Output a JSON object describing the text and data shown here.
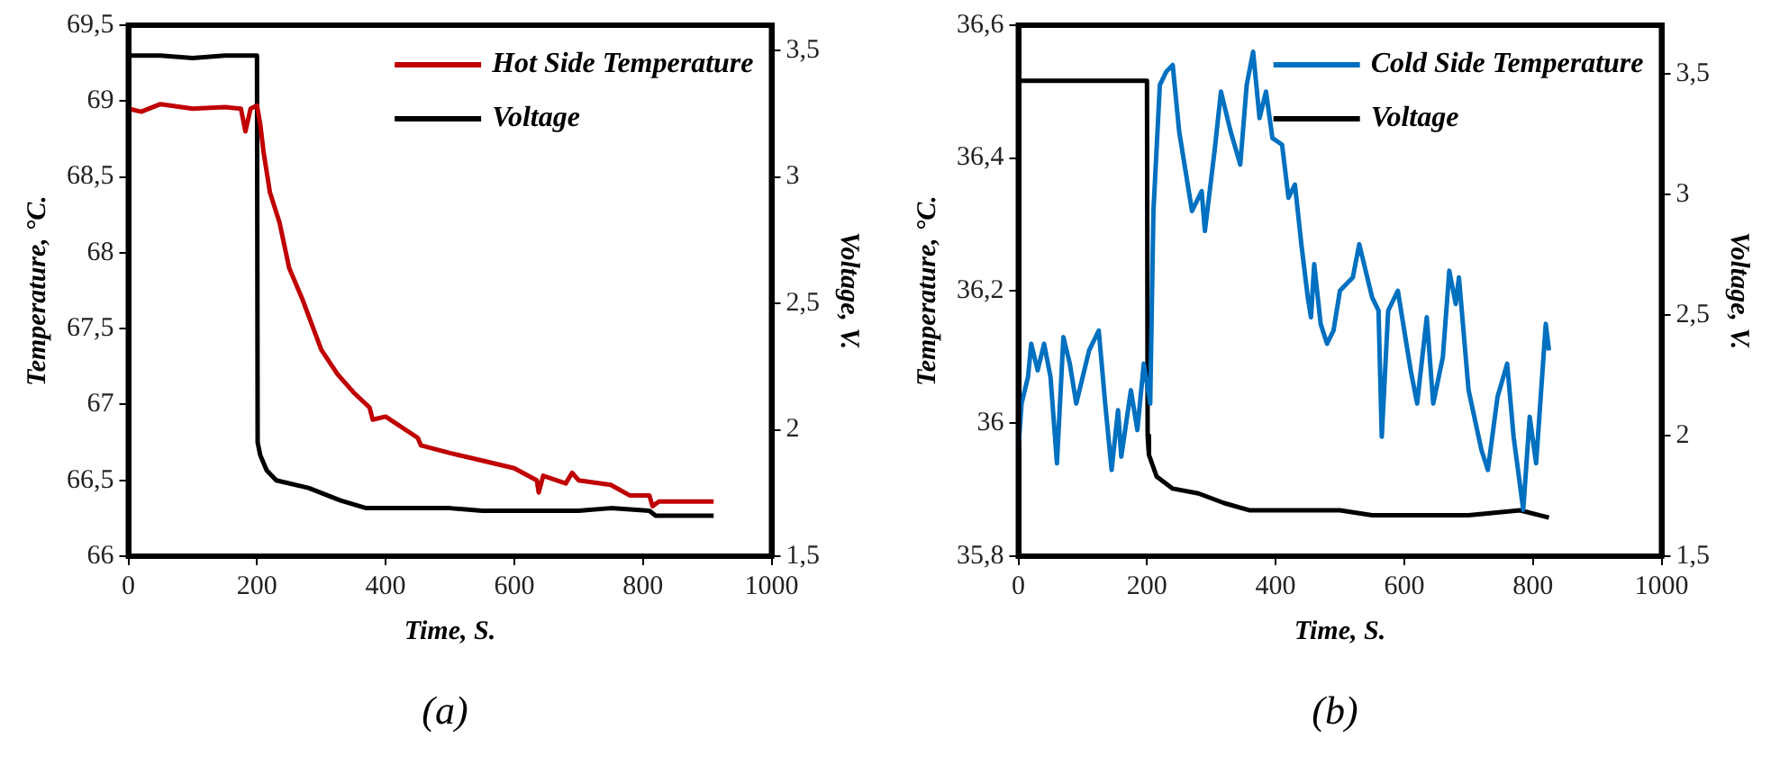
{
  "chart_data": [
    {
      "type": "line",
      "xlabel": "Time, S.",
      "ylabel": "Temperature, °C.",
      "y2label": "Voltage, V.",
      "annotations": [
        "(a)"
      ],
      "legend": "top right",
      "grid": false,
      "marker": "none",
      "line_style": "solid",
      "xlim": [
        0,
        1000
      ],
      "xticks": [
        0,
        200,
        400,
        600,
        800,
        1000
      ],
      "ylim": [
        66,
        69.5
      ],
      "yticks": [
        66,
        {
          "value": 66.5,
          "label": "66,5"
        },
        67,
        {
          "value": 67.5,
          "label": "67,5"
        },
        68,
        {
          "value": 68.5,
          "label": "68,5"
        },
        69,
        {
          "value": 69.5,
          "label": "69,5"
        }
      ],
      "y2lim": [
        1.5,
        3.6
      ],
      "y2ticks": [
        {
          "value": 1.5,
          "label": "1,5"
        },
        {
          "value": 2,
          "label": "2"
        },
        {
          "value": 2.5,
          "label": "2,5"
        },
        {
          "value": 3,
          "label": "3"
        },
        {
          "value": 3.5,
          "label": "3,5"
        }
      ],
      "series": [
        {
          "name": "Hot Side Temperature",
          "color": "#c00000",
          "x": [
            0,
            20,
            50,
            100,
            150,
            175,
            182,
            190,
            200,
            205,
            210,
            220,
            235,
            250,
            270,
            300,
            325,
            350,
            375,
            380,
            400,
            450,
            455,
            500,
            550,
            600,
            635,
            638,
            645,
            680,
            690,
            700,
            750,
            780,
            810,
            815,
            825,
            910
          ],
          "values": [
            68.95,
            68.93,
            68.98,
            68.95,
            68.96,
            68.95,
            68.8,
            68.95,
            68.97,
            68.85,
            68.67,
            68.4,
            68.2,
            67.9,
            67.7,
            67.36,
            67.2,
            67.08,
            66.98,
            66.9,
            66.92,
            66.78,
            66.73,
            66.68,
            66.63,
            66.58,
            66.5,
            66.42,
            66.53,
            66.48,
            66.55,
            66.5,
            66.47,
            66.4,
            66.4,
            66.33,
            66.36,
            66.36
          ]
        },
        {
          "name": "Voltage",
          "color": "#000000",
          "axis": "y2",
          "x": [
            0,
            50,
            100,
            150,
            200,
            201,
            205,
            215,
            230,
            280,
            330,
            370,
            450,
            500,
            550,
            700,
            750,
            810,
            820,
            910
          ],
          "values": [
            3.48,
            3.48,
            3.47,
            3.48,
            3.48,
            1.95,
            1.9,
            1.84,
            1.8,
            1.77,
            1.72,
            1.69,
            1.69,
            1.69,
            1.68,
            1.68,
            1.69,
            1.68,
            1.66,
            1.66
          ]
        }
      ]
    },
    {
      "type": "line",
      "xlabel": "Time, S.",
      "ylabel": "Temperature, °C.",
      "y2label": "Voltage, V.",
      "annotations": [
        "(b)"
      ],
      "legend": "top right",
      "grid": false,
      "marker": "none",
      "line_style": "solid",
      "xlim": [
        0,
        1000
      ],
      "xticks": [
        0,
        200,
        400,
        600,
        800,
        1000
      ],
      "ylim": [
        35.8,
        36.6
      ],
      "yticks": [
        {
          "value": 35.8,
          "label": "35,8"
        },
        36,
        {
          "value": 36.2,
          "label": "36,2"
        },
        {
          "value": 36.4,
          "label": "36,4"
        },
        {
          "value": 36.6,
          "label": "36,6"
        }
      ],
      "y2lim": [
        1.5,
        3.7
      ],
      "y2ticks": [
        {
          "value": 1.5,
          "label": "1,5"
        },
        {
          "value": 2,
          "label": "2"
        },
        {
          "value": 2.5,
          "label": "2,5"
        },
        {
          "value": 3,
          "label": "3"
        },
        {
          "value": 3.5,
          "label": "3,5"
        }
      ],
      "series": [
        {
          "name": "Cold Side Temperature",
          "color": "#0070c0",
          "x": [
            0,
            5,
            15,
            20,
            30,
            40,
            50,
            60,
            70,
            80,
            90,
            100,
            110,
            125,
            135,
            145,
            155,
            160,
            175,
            185,
            195,
            205,
            210,
            220,
            230,
            240,
            250,
            270,
            285,
            290,
            305,
            315,
            330,
            345,
            355,
            365,
            375,
            385,
            395,
            410,
            420,
            430,
            440,
            450,
            455,
            460,
            470,
            480,
            490,
            500,
            520,
            530,
            550,
            560,
            565,
            575,
            590,
            610,
            620,
            635,
            645,
            660,
            670,
            680,
            685,
            700,
            720,
            730,
            745,
            760,
            770,
            785,
            795,
            805,
            815,
            820,
            825
          ],
          "values": [
            35.96,
            36.03,
            36.07,
            36.12,
            36.08,
            36.12,
            36.07,
            35.94,
            36.13,
            36.09,
            36.03,
            36.07,
            36.11,
            36.14,
            36.03,
            35.93,
            36.02,
            35.95,
            36.05,
            35.99,
            36.09,
            36.03,
            36.32,
            36.51,
            36.53,
            36.54,
            36.44,
            36.32,
            36.35,
            36.29,
            36.41,
            36.5,
            36.44,
            36.39,
            36.51,
            36.56,
            36.46,
            36.5,
            36.43,
            36.42,
            36.34,
            36.36,
            36.27,
            36.19,
            36.16,
            36.24,
            36.15,
            36.12,
            36.14,
            36.2,
            36.22,
            36.27,
            36.19,
            36.17,
            35.98,
            36.17,
            36.2,
            36.08,
            36.03,
            36.16,
            36.03,
            36.1,
            36.23,
            36.18,
            36.22,
            36.05,
            35.96,
            35.93,
            36.04,
            36.09,
            35.98,
            35.87,
            36.01,
            35.94,
            36.08,
            36.15,
            36.11
          ]
        },
        {
          "name": "Voltage",
          "color": "#000000",
          "axis": "y2",
          "x": [
            0,
            50,
            100,
            150,
            200,
            201,
            203,
            215,
            240,
            280,
            320,
            360,
            500,
            550,
            700,
            780,
            825
          ],
          "values": [
            3.47,
            3.47,
            3.47,
            3.47,
            3.47,
            2.0,
            1.92,
            1.83,
            1.78,
            1.76,
            1.72,
            1.69,
            1.69,
            1.67,
            1.67,
            1.69,
            1.66
          ]
        }
      ]
    }
  ]
}
